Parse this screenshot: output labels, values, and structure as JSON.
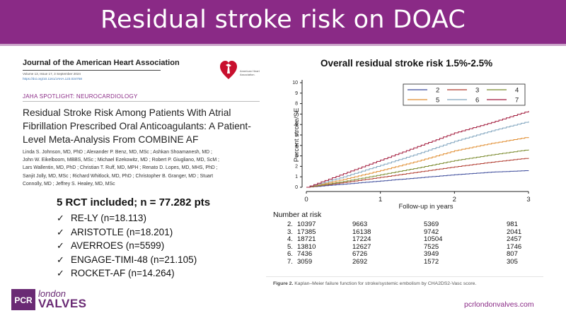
{
  "slide": {
    "title": "Residual stroke risk on DOAC",
    "url": "pcrlondonvalves.com"
  },
  "logo": {
    "mark": "PCR",
    "word1": "london",
    "word2": "VALVES"
  },
  "article": {
    "journal": "Journal of the American Heart Association",
    "volume": "Volume 13, Issue 17, 3 September 2024",
    "doi": "https://doi.org/10.1161/JAHA.123.034758",
    "publisher_text": "American Heart Association.",
    "spotlight": "JAHA SPOTLIGHT: NEUROCARDIOLOGY",
    "title": "Residual Stroke Risk Among Patients With Atrial Fibrillation Prescribed Oral Anticoagulants: A Patient-Level Meta-Analysis From COMBINE AF",
    "authors_lines": [
      "Linda S. Johnson, MD, PhD ; Alexander P. Benz, MD, MSc ; Ashkan Shoamanesh, MD ;",
      "John W. Eikelboom, MBBS, MSc ; Michael Ezekowitz, MD ; Robert P. Giugliano, MD, ScM ;",
      "Lars Wallentin, MD, PhD ; Christian T. Ruff, MD, MPH ; Renato D. Lopes, MD, MHS, PhD ;",
      "Sanjit Jolly, MD, MSc ; Richard Whitlock, MD, PhD ; Christopher B. Granger, MD ; Stuart",
      "Connolly, MD ; Jeffrey S. Healey, MD, MSc"
    ]
  },
  "rct": {
    "heading": "5 RCT included; n = 77.282 pts",
    "items": [
      "RE-LY (n=18.113)",
      "ARISTOTLE (n=18.201)",
      "AVERROES (n=5599)",
      "ENGAGE-TIMI-48 (n=21.105)",
      "ROCKET-AF (n=14.264)"
    ],
    "check": "✓"
  },
  "chart_title": "Overall residual stroke risk 1.5%-2.5%",
  "chart_data": {
    "type": "line",
    "xlabel": "Follow-up in years",
    "ylabel": "Percent stroke/SE",
    "xlim": [
      0,
      3
    ],
    "ylim": [
      0,
      10
    ],
    "x_ticks": [
      0,
      1,
      2,
      3
    ],
    "y_ticks": [
      0,
      1,
      2,
      3,
      4,
      5,
      6,
      7,
      8,
      9,
      10
    ],
    "legend_position": "top-right",
    "x": [
      0,
      0.5,
      1,
      1.5,
      2,
      2.5,
      3
    ],
    "series": [
      {
        "name": "2",
        "color": "#3b4a9a",
        "values": [
          0,
          0.3,
          0.6,
          0.9,
          1.2,
          1.45,
          1.6
        ]
      },
      {
        "name": "3",
        "color": "#b03a2e",
        "values": [
          0,
          0.45,
          0.95,
          1.45,
          1.95,
          2.4,
          2.8
        ]
      },
      {
        "name": "4",
        "color": "#7a8a2e",
        "values": [
          0,
          0.55,
          1.2,
          1.85,
          2.55,
          3.1,
          3.6
        ]
      },
      {
        "name": "5",
        "color": "#e08c2e",
        "values": [
          0,
          0.75,
          1.6,
          2.5,
          3.5,
          4.2,
          4.8
        ]
      },
      {
        "name": "6",
        "color": "#7fa3bd",
        "values": [
          0,
          1.0,
          2.1,
          3.2,
          4.4,
          5.4,
          6.3
        ]
      },
      {
        "name": "7",
        "color": "#a0183a",
        "values": [
          0,
          1.3,
          2.6,
          3.9,
          5.2,
          6.2,
          7.3
        ]
      }
    ]
  },
  "number_at_risk": {
    "heading": "Number at risk",
    "rows": [
      {
        "label": "2.",
        "values": [
          "10397",
          "9663",
          "5369",
          "981"
        ]
      },
      {
        "label": "3.",
        "values": [
          "17385",
          "16138",
          "9742",
          "2041"
        ]
      },
      {
        "label": "4.",
        "values": [
          "18721",
          "17224",
          "10504",
          "2457"
        ]
      },
      {
        "label": "5.",
        "values": [
          "13810",
          "12627",
          "7525",
          "1746"
        ]
      },
      {
        "label": "6.",
        "values": [
          "7436",
          "6726",
          "3949",
          "807"
        ]
      },
      {
        "label": "7.",
        "values": [
          "3059",
          "2692",
          "1572",
          "305"
        ]
      }
    ]
  },
  "figure_caption": {
    "label": "Figure 2.",
    "text": "Kaplan–Meier failure function for stroke/systemic embolism by CHA2DS2-Vasc score."
  }
}
